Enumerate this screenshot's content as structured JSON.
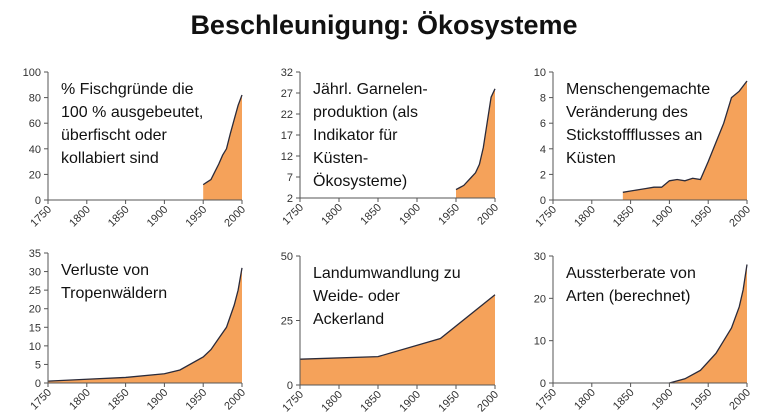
{
  "title": "Beschleunigung: Ökosysteme",
  "chart_data": [
    {
      "type": "area",
      "title_lines": [
        "% Fischgründe die",
        "100 % ausgebeutet,",
        "überfischt oder",
        "kollabiert sind"
      ],
      "x": [
        1950,
        1955,
        1960,
        1965,
        1970,
        1975,
        1980,
        1985,
        1990,
        1995,
        2000
      ],
      "values": [
        12,
        14,
        16,
        22,
        28,
        35,
        40,
        52,
        63,
        74,
        82
      ],
      "xlim": [
        1750,
        2000
      ],
      "xticks": [
        1750,
        1800,
        1850,
        1900,
        1950,
        2000
      ],
      "ylim": [
        0,
        100
      ],
      "yticks": [
        0,
        20,
        40,
        60,
        80,
        100
      ],
      "color": "#f5a25a"
    },
    {
      "type": "area",
      "title_lines": [
        "Jährl. Garnelen-",
        "produktion (als",
        "Indikator für",
        "Küsten-",
        "Ökosysteme)"
      ],
      "x": [
        1950,
        1955,
        1960,
        1965,
        1970,
        1975,
        1980,
        1985,
        1990,
        1995,
        2000
      ],
      "values": [
        4,
        4.5,
        5,
        6,
        7,
        8,
        10,
        14,
        20,
        26,
        28
      ],
      "xlim": [
        1750,
        2000
      ],
      "xticks": [
        1750,
        1800,
        1850,
        1900,
        1950,
        2000
      ],
      "ylim": [
        2,
        32
      ],
      "yticks": [
        2,
        7,
        12,
        17,
        22,
        27,
        32
      ],
      "color": "#f5a25a"
    },
    {
      "type": "area",
      "title_lines": [
        "Menschengemachte",
        "Veränderung des",
        "Stickstoffflusses an",
        "Küsten"
      ],
      "x": [
        1840,
        1850,
        1860,
        1870,
        1880,
        1890,
        1900,
        1910,
        1920,
        1930,
        1940,
        1950,
        1960,
        1970,
        1980,
        1990,
        2000
      ],
      "values": [
        0.6,
        0.7,
        0.8,
        0.9,
        1.0,
        1.0,
        1.5,
        1.6,
        1.5,
        1.7,
        1.6,
        3.0,
        4.5,
        6.0,
        8.0,
        8.5,
        9.3
      ],
      "xlim": [
        1750,
        2000
      ],
      "xticks": [
        1750,
        1800,
        1850,
        1900,
        1950,
        2000
      ],
      "ylim": [
        0,
        10
      ],
      "yticks": [
        0,
        2,
        4,
        6,
        8,
        10
      ],
      "color": "#f5a25a"
    },
    {
      "type": "area",
      "title_lines": [
        "Verluste von",
        "Tropenwäldern"
      ],
      "x": [
        1750,
        1800,
        1850,
        1900,
        1920,
        1950,
        1960,
        1970,
        1980,
        1985,
        1990,
        1995,
        2000
      ],
      "values": [
        0.5,
        1,
        1.5,
        2.5,
        3.5,
        7,
        9,
        12,
        15,
        18,
        21,
        25,
        31
      ],
      "xlim": [
        1750,
        2000
      ],
      "xticks": [
        1750,
        1800,
        1850,
        1900,
        1950,
        2000
      ],
      "ylim": [
        0,
        35
      ],
      "yticks": [
        0,
        5,
        10,
        15,
        20,
        25,
        30,
        35
      ],
      "color": "#f5a25a"
    },
    {
      "type": "area",
      "title_lines": [
        "Landumwandlung zu",
        "Weide- oder",
        "Ackerland"
      ],
      "x": [
        1750,
        1850,
        1930,
        2000
      ],
      "values": [
        10,
        11,
        18,
        35
      ],
      "xlim": [
        1750,
        2000
      ],
      "xticks": [
        1750,
        1800,
        1850,
        1900,
        1950,
        2000
      ],
      "ylim": [
        0,
        50
      ],
      "yticks": [
        0,
        25,
        50
      ],
      "color": "#f5a25a"
    },
    {
      "type": "area",
      "title_lines": [
        "Aussterberate von",
        "Arten (berechnet)"
      ],
      "x": [
        1900,
        1920,
        1940,
        1960,
        1970,
        1980,
        1990,
        1995,
        2000
      ],
      "values": [
        0,
        1,
        3,
        7,
        10,
        13,
        18,
        22,
        28
      ],
      "xlim": [
        1750,
        2000
      ],
      "xticks": [
        1750,
        1800,
        1850,
        1900,
        1950,
        2000
      ],
      "ylim": [
        0,
        30
      ],
      "yticks": [
        0,
        10,
        20,
        30
      ],
      "color": "#f5a25a"
    }
  ]
}
